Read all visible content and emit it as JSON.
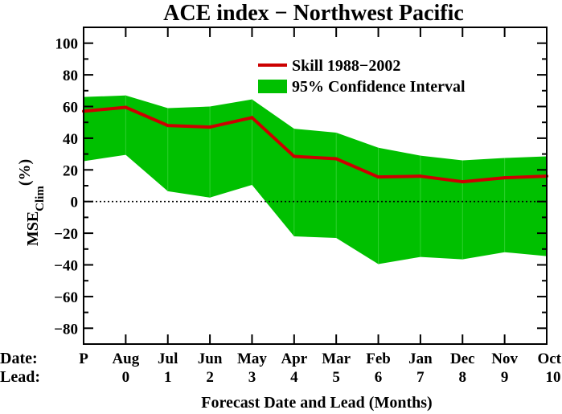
{
  "chart_data": {
    "type": "line",
    "title": "ACE index − Northwest Pacific",
    "xlabel": "Forecast Date and Lead (Months)",
    "ylabel_main": "MSE",
    "ylabel_sub": "Clim",
    "ylabel_unit": "(%)",
    "row_labels": {
      "date": "Date:",
      "lead": "Lead:"
    },
    "categories": [
      "P",
      "Aug",
      "Jul",
      "Jun",
      "May",
      "Apr",
      "Mar",
      "Feb",
      "Jan",
      "Dec",
      "Nov",
      "Oct"
    ],
    "leads": [
      "",
      "0",
      "1",
      "2",
      "3",
      "4",
      "5",
      "6",
      "7",
      "8",
      "9",
      "10"
    ],
    "ylim": [
      -90,
      110
    ],
    "yticks": [
      100,
      80,
      60,
      40,
      20,
      0,
      -20,
      -40,
      -60,
      -80
    ],
    "zero_line": "dotted",
    "legend_position": "top-right",
    "series": [
      {
        "name": "Skill 1988−2002",
        "color": "#cc0000",
        "values": [
          57,
          59.5,
          48,
          47,
          53,
          28.5,
          27,
          15.5,
          16,
          12.5,
          15,
          16
        ]
      },
      {
        "name": "95% Confidence Interval",
        "color": "#00c000",
        "type": "band",
        "upper": [
          66,
          67,
          59,
          60,
          64.5,
          46,
          43.5,
          34,
          29,
          26,
          27.5,
          28.5
        ],
        "lower": [
          25.5,
          29.5,
          6.5,
          2.5,
          10.5,
          -22,
          -23,
          -39.5,
          -35,
          -36.5,
          -32,
          -34.5
        ]
      }
    ]
  }
}
